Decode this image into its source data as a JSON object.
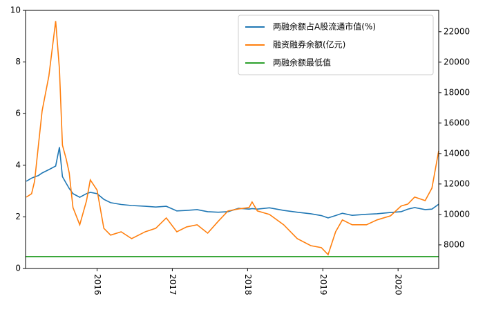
{
  "chart_data": {
    "type": "line",
    "x": [
      2015.06,
      2015.13,
      2015.17,
      2015.22,
      2015.27,
      2015.36,
      2015.45,
      2015.5,
      2015.54,
      2015.59,
      2015.63,
      2015.68,
      2015.77,
      2015.86,
      2015.91,
      2016.0,
      2016.09,
      2016.18,
      2016.32,
      2016.46,
      2016.64,
      2016.78,
      2016.92,
      2017.06,
      2017.19,
      2017.33,
      2017.47,
      2017.61,
      2017.74,
      2017.88,
      2018.02,
      2018.06,
      2018.13,
      2018.29,
      2018.48,
      2018.66,
      2018.84,
      2018.98,
      2019.07,
      2019.17,
      2019.26,
      2019.39,
      2019.58,
      2019.72,
      2019.9,
      2020.04,
      2020.13,
      2020.22,
      2020.36,
      2020.45,
      2020.54
    ],
    "series": [
      {
        "name": "两融余额占A股流通市值(%)",
        "color": "#1f77b4",
        "values": [
          3.38,
          3.5,
          3.55,
          3.6,
          3.7,
          3.83,
          3.97,
          4.7,
          3.56,
          3.3,
          3.1,
          2.9,
          2.76,
          2.9,
          2.95,
          2.9,
          2.68,
          2.55,
          2.48,
          2.44,
          2.41,
          2.38,
          2.41,
          2.23,
          2.25,
          2.28,
          2.2,
          2.18,
          2.2,
          2.33,
          2.3,
          2.32,
          2.3,
          2.35,
          2.25,
          2.18,
          2.12,
          2.05,
          1.96,
          2.05,
          2.14,
          2.06,
          2.1,
          2.12,
          2.17,
          2.2,
          2.3,
          2.36,
          2.28,
          2.3,
          2.49
        ]
      },
      {
        "name": "融资融券余额(亿元)",
        "color": "#ff7f0e",
        "axis": "y2",
        "values": [
          11136,
          11360,
          12180,
          14500,
          16800,
          19100,
          22700,
          19550,
          14550,
          13640,
          12730,
          10450,
          9320,
          10900,
          12270,
          11600,
          9090,
          8640,
          8860,
          8410,
          8860,
          9090,
          9770,
          8860,
          9180,
          9320,
          8770,
          9550,
          10230,
          10360,
          10450,
          10820,
          10230,
          10000,
          9320,
          8410,
          7950,
          7820,
          7360,
          8860,
          9640,
          9320,
          9320,
          9640,
          9910,
          10550,
          10680,
          11140,
          10910,
          11730,
          14180
        ]
      },
      {
        "name": "两融余额最低值",
        "color": "#2ca02c",
        "x": [
          2015.05,
          2020.54
        ],
        "values": [
          0.46,
          0.46
        ]
      }
    ],
    "xlim": [
      2015.05,
      2020.54
    ],
    "xticks": [
      2016,
      2017,
      2018,
      2019,
      2020
    ],
    "ylim": [
      0,
      10
    ],
    "yticks": [
      0,
      2,
      4,
      6,
      8,
      10
    ],
    "y2lim": [
      6450,
      23400
    ],
    "y2ticks": [
      8000,
      10000,
      12000,
      14000,
      16000,
      18000,
      20000,
      22000
    ],
    "legend": "upper right",
    "grid": false
  }
}
